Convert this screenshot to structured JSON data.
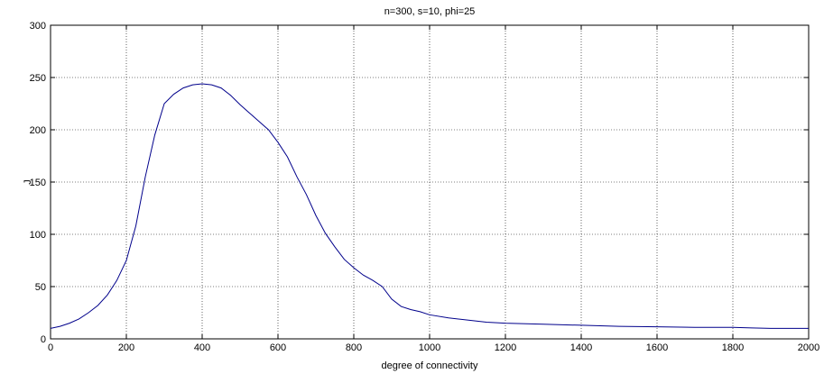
{
  "chart_data": {
    "type": "line",
    "title": "n=300, s=10, phi=25",
    "xlabel": "degree of connectivity",
    "ylabel": "J",
    "xlim": [
      0,
      2000
    ],
    "ylim": [
      0,
      300
    ],
    "xticks": [
      0,
      200,
      400,
      600,
      800,
      1000,
      1200,
      1400,
      1600,
      1800,
      2000
    ],
    "yticks": [
      0,
      50,
      100,
      150,
      200,
      250,
      300
    ],
    "grid": true,
    "line_color": "#00008b",
    "series": [
      {
        "x": [
          0,
          25,
          50,
          75,
          100,
          125,
          150,
          175,
          200,
          225,
          250,
          275,
          300,
          325,
          350,
          375,
          400,
          425,
          450,
          475,
          500,
          525,
          550,
          575,
          600,
          625,
          650,
          675,
          700,
          725,
          750,
          775,
          800,
          825,
          850,
          875,
          900,
          925,
          950,
          975,
          1000,
          1050,
          1100,
          1150,
          1200,
          1300,
          1400,
          1500,
          1600,
          1700,
          1800,
          1850,
          1900,
          2000
        ],
        "y": [
          10,
          12,
          15,
          19,
          25,
          32,
          42,
          56,
          75,
          108,
          155,
          195,
          225,
          234,
          240,
          243,
          244,
          243,
          240,
          233,
          224,
          216,
          208,
          200,
          188,
          174,
          155,
          138,
          118,
          101,
          88,
          76,
          68,
          61,
          56,
          50,
          38,
          31,
          28,
          26,
          23,
          20,
          18,
          16,
          15,
          14,
          13,
          12,
          11.5,
          11,
          11,
          10.5,
          10,
          10
        ]
      }
    ]
  }
}
